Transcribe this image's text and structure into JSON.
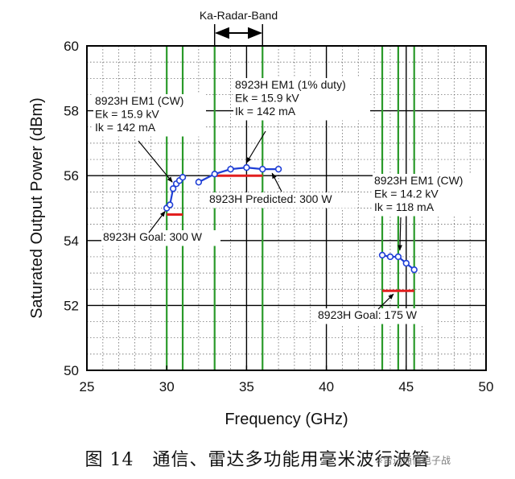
{
  "chart_data": {
    "type": "scatter",
    "xlabel": "Frequency (GHz)",
    "ylabel": "Saturated Output Power (dBm)",
    "xlim": [
      25,
      50
    ],
    "ylim": [
      50,
      60
    ],
    "xticks": [
      25,
      30,
      35,
      40,
      45,
      50
    ],
    "yticks": [
      50,
      52,
      54,
      56,
      58,
      60
    ],
    "grid": true,
    "band_label": "Ka-Radar-Band",
    "band_range": [
      33,
      36
    ],
    "band_line_color": "#2a9a2a",
    "extra_vlines": [
      30,
      31,
      43.5,
      44.5,
      45.5
    ],
    "series": [
      {
        "x": [
          30.0,
          30.2,
          30.4,
          30.6,
          30.8,
          31.0
        ],
        "y": [
          55.0,
          55.1,
          55.6,
          55.75,
          55.85,
          55.95
        ],
        "color": "#1f3fd6"
      },
      {
        "x": [
          32.0,
          33.0,
          34.0,
          35.0,
          36.0,
          37.0
        ],
        "y": [
          55.8,
          56.05,
          56.2,
          56.25,
          56.2,
          56.2
        ],
        "color": "#1f3fd6"
      },
      {
        "x": [
          43.5,
          44.0,
          44.5,
          45.0,
          45.5
        ],
        "y": [
          53.55,
          53.5,
          53.5,
          53.3,
          53.1
        ],
        "color": "#1f3fd6"
      }
    ],
    "reference_lines": [
      {
        "x": [
          30.0,
          31.0
        ],
        "y": 54.8,
        "color": "#e21f1f"
      },
      {
        "x": [
          33.0,
          36.0
        ],
        "y": 56.0,
        "color": "#e21f1f"
      },
      {
        "x": [
          43.5,
          45.5
        ],
        "y": 52.45,
        "color": "#e21f1f"
      }
    ],
    "annotations": [
      {
        "lines": [
          "8923H EM1 (CW)",
          "Ek = 15.9 kV",
          "Ik = 142 mA"
        ]
      },
      {
        "lines": [
          "8923H EM1 (1% duty)",
          "Ek = 15.9 kV",
          "Ik = 142 mA"
        ]
      },
      {
        "lines": [
          "8923H EM1 (CW)",
          "Ek = 14.2 kV",
          "Ik = 118 mA"
        ]
      },
      {
        "lines": [
          "8923H Goal: 300 W"
        ]
      },
      {
        "lines": [
          "8923H Predicted: 300 W"
        ]
      },
      {
        "lines": [
          "8923H Goal: 175 W"
        ]
      }
    ]
  },
  "caption": "图 14　通信、雷达多功能用毫米波行波管",
  "watermark": "※雷达通信电子战"
}
